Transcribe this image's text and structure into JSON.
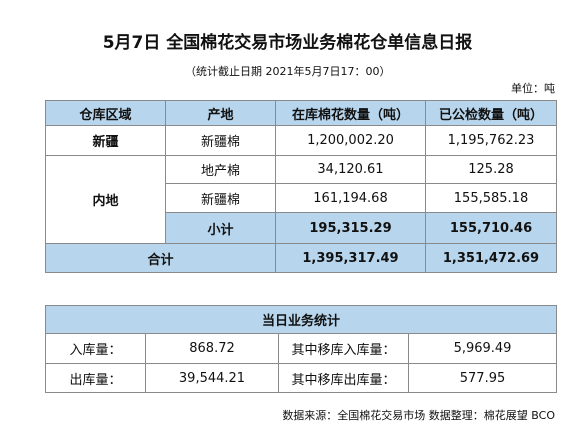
{
  "header": {
    "title": "5月7日 全国棉花交易市场业务棉花仓单信息日报",
    "subtitle": "（统计截止日期 2021年5月7日17：00）",
    "unit": "单位：吨"
  },
  "warehouse_table": {
    "header": [
      "仓库区域",
      "产地",
      "在库棉花数量（吨）",
      "已公检数量（吨）"
    ],
    "groups": [
      {
        "region": "新疆",
        "rows": [
          [
            "新疆棉",
            "1,200,002.20",
            "1,195,762.23"
          ]
        ]
      },
      {
        "region": "内地",
        "rows": [
          [
            "地产棉",
            "34,120.61",
            "125.28"
          ],
          [
            "新疆棉",
            "161,194.68",
            "155,585.18"
          ],
          [
            "小计",
            "195,315.29",
            "155,710.46"
          ]
        ]
      }
    ],
    "total": [
      "合计",
      "1,395,317.49",
      "1,351,472.69"
    ]
  },
  "daily_stats": {
    "title": "当日业务统计",
    "rows": [
      [
        "入库量：",
        "868.72",
        "其中移库入库量：",
        "5,969.49"
      ],
      [
        "出库量：",
        "39,544.21",
        "其中移库出库量：",
        "577.95"
      ]
    ]
  },
  "footer": "数据来源：全国棉花交易市场 数据整理：棉花展望 BCO"
}
